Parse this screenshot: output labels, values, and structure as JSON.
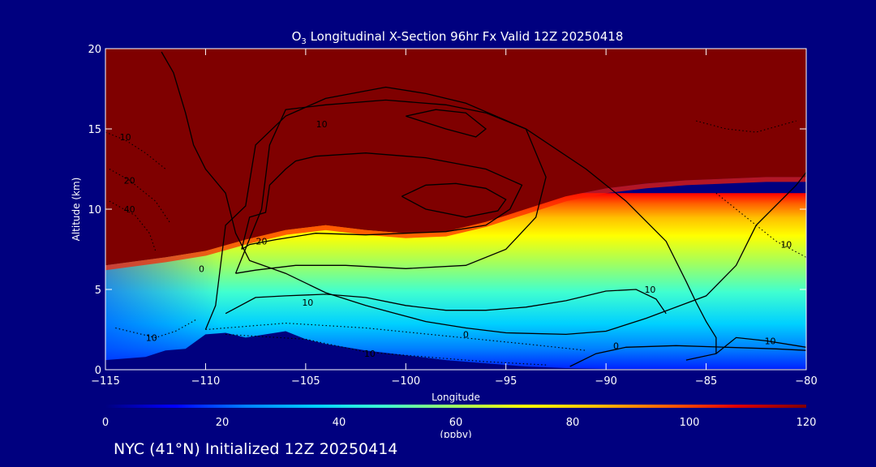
{
  "chart_data": {
    "type": "heatmap",
    "title_prefix": "O",
    "title_sub": "3",
    "title_rest": " Longitudinal X-Section 96hr  Fx Valid 12Z 20250418",
    "xlabel": "Longitude",
    "ylabel": "Altitude (km)",
    "xlim": [
      -115,
      -80
    ],
    "ylim": [
      0,
      20
    ],
    "x_ticks": [
      -115,
      -110,
      -105,
      -100,
      -95,
      -90,
      -85,
      -80
    ],
    "x_tick_labels": [
      "−115",
      "−110",
      "−105",
      "−100",
      "−95",
      "−90",
      "−85",
      "−80"
    ],
    "y_ticks": [
      0,
      5,
      10,
      15,
      20
    ],
    "y_tick_labels": [
      "0",
      "5",
      "10",
      "15",
      "20"
    ],
    "colorbar": {
      "min": 0,
      "max": 120,
      "ticks": [
        0,
        20,
        40,
        60,
        80,
        100,
        120
      ],
      "tick_labels": [
        "0",
        "20",
        "40",
        "60",
        "80",
        "100",
        "120"
      ],
      "unit": "(ppbv)",
      "colors": [
        "#00007f",
        "#0000ff",
        "#0080ff",
        "#00d0ff",
        "#40ffd0",
        "#a0ff60",
        "#ffff00",
        "#ffc000",
        "#ff6000",
        "#e00000",
        "#7f0000"
      ]
    },
    "stratosphere_boundary": {
      "lon": [
        -115,
        -112,
        -110,
        -108,
        -106,
        -104,
        -102,
        -100,
        -98,
        -96,
        -94,
        -92,
        -90,
        -88,
        -86,
        -84,
        -82,
        -80
      ],
      "alt": [
        6.5,
        7.0,
        7.4,
        8.1,
        8.7,
        9.0,
        8.7,
        8.5,
        8.6,
        9.2,
        10.0,
        10.8,
        11.3,
        11.6,
        11.8,
        11.9,
        12.0,
        12.0
      ]
    },
    "terrain": {
      "lon": [
        -115,
        -113,
        -112,
        -111,
        -110,
        -109,
        -108,
        -107,
        -106,
        -105,
        -104,
        -102,
        -100,
        -98,
        -96,
        -94,
        -92,
        -90,
        -88,
        -85,
        -82,
        -80
      ],
      "alt": [
        0.6,
        0.8,
        1.2,
        1.3,
        2.2,
        2.3,
        2.0,
        2.2,
        2.4,
        1.9,
        1.6,
        1.2,
        0.9,
        0.6,
        0.4,
        0.2,
        0.1,
        0.05,
        0.05,
        0.05,
        0.05,
        0.05
      ]
    },
    "contours": [
      {
        "label": "0",
        "style": "solid",
        "label_pos": [
          -110.2,
          6.3
        ],
        "lon": [
          -112.2,
          -111.6,
          -111.0,
          -110.6,
          -110.0,
          -109.0,
          -108.5,
          -107.8,
          -106.0,
          -104.0,
          -102.0,
          -100.5,
          -99.0,
          -97.0,
          -95.0,
          -92.0,
          -90.0,
          -88.0,
          -85.0,
          -83.5,
          -82.5,
          -80.5,
          -80.0
        ],
        "alt": [
          19.8,
          18.5,
          16.0,
          14.0,
          12.5,
          11.0,
          8.5,
          6.8,
          6.0,
          4.8,
          4.0,
          3.5,
          3.0,
          2.6,
          2.3,
          2.2,
          2.4,
          3.2,
          4.6,
          6.5,
          9.0,
          11.5,
          12.3
        ]
      },
      {
        "label": "10",
        "style": "solid",
        "label_pos": [
          -104.9,
          4.2
        ],
        "lon": [
          -110.0,
          -109.5,
          -109.3,
          -109.0,
          -108.0,
          -107.5,
          -106.0,
          -104.0,
          -101.0,
          -99.0,
          -97.0,
          -94.0,
          -91.0,
          -89.0,
          -87.0,
          -86.0,
          -85.5,
          -85.0,
          -84.5,
          -84.5
        ],
        "alt": [
          2.5,
          4.0,
          6.0,
          9.0,
          10.2,
          14.0,
          15.8,
          16.9,
          17.6,
          17.2,
          16.6,
          15.0,
          12.5,
          10.5,
          8.0,
          5.5,
          4.2,
          3.0,
          2.0,
          1.0
        ]
      },
      {
        "label": "10",
        "style": "solid",
        "label_pos": [
          -87.8,
          5.0
        ],
        "lon": [
          -109.0,
          -107.5,
          -106.0,
          -104.0,
          -102.0,
          -100.0,
          -98.0,
          -96.0,
          -94.0,
          -92.0,
          -90.0,
          -88.5,
          -87.5,
          -87.0
        ],
        "alt": [
          3.5,
          4.5,
          4.6,
          4.7,
          4.5,
          4.0,
          3.7,
          3.7,
          3.9,
          4.3,
          4.9,
          5.0,
          4.4,
          3.5
        ]
      },
      {
        "label": "10",
        "style": "solid",
        "label_pos": [
          -104.2,
          15.3
        ],
        "lon": [
          -108.5,
          -107.2,
          -106.8,
          -106.0,
          -104.0,
          -101.0,
          -98.0,
          -96.0,
          -94.0,
          -93.0,
          -93.5,
          -95.0,
          -97.0,
          -100.0,
          -103.0,
          -105.5,
          -107.5,
          -108.5
        ],
        "alt": [
          6.0,
          10.0,
          14.0,
          16.2,
          16.5,
          16.8,
          16.5,
          16.0,
          15.0,
          12.0,
          9.5,
          7.5,
          6.5,
          6.3,
          6.5,
          6.5,
          6.2,
          6.0
        ]
      },
      {
        "label": "20",
        "style": "solid",
        "label_pos": [
          -107.2,
          8.0
        ],
        "lon": [
          -108.2,
          -107.8,
          -107.0,
          -106.8,
          -106.0,
          -105.5,
          -104.5,
          -102.0,
          -99.0,
          -96.0,
          -94.2,
          -94.8,
          -96.0,
          -98.0,
          -100.0,
          -102.0,
          -104.5,
          -106.5,
          -107.8,
          -108.2
        ],
        "alt": [
          7.5,
          9.5,
          9.8,
          11.5,
          12.5,
          13.0,
          13.3,
          13.5,
          13.2,
          12.5,
          11.5,
          10.0,
          9.0,
          8.6,
          8.5,
          8.4,
          8.5,
          8.1,
          7.8,
          7.5
        ]
      },
      {
        "label": "",
        "style": "solid",
        "label_pos": [
          -98,
          11
        ],
        "lon": [
          -100.2,
          -99.0,
          -97.5,
          -96.0,
          -95.0,
          -95.4,
          -97.0,
          -99.0,
          -100.2
        ],
        "alt": [
          10.8,
          11.5,
          11.6,
          11.3,
          10.6,
          9.9,
          9.5,
          10.0,
          10.8
        ]
      },
      {
        "label": "",
        "style": "solid",
        "label_pos": [
          -97,
          16
        ],
        "lon": [
          -100.0,
          -98.5,
          -97.0,
          -96.0,
          -96.5,
          -98.0,
          -100.0
        ],
        "alt": [
          15.8,
          16.2,
          16.0,
          15.0,
          14.5,
          15.0,
          15.8
        ]
      },
      {
        "label": "0",
        "style": "solid",
        "label_pos": [
          -89.5,
          1.5
        ],
        "lon": [
          -91.8,
          -90.5,
          -89.0,
          -86.5,
          -84.0,
          -81.5,
          -80.0
        ],
        "alt": [
          0.2,
          1.0,
          1.4,
          1.5,
          1.4,
          1.3,
          1.2
        ]
      },
      {
        "label": "10",
        "style": "solid",
        "label_pos": [
          -81.8,
          1.8
        ],
        "lon": [
          -86.0,
          -84.5,
          -83.5,
          -82.0,
          -80.5,
          -80.0
        ],
        "alt": [
          0.6,
          1.0,
          2.0,
          1.8,
          1.5,
          1.4
        ]
      },
      {
        "label": "0",
        "style": "dotted",
        "label_pos": [
          -97.0,
          2.2
        ],
        "lon": [
          -110.0,
          -106.0,
          -102.0,
          -98.0,
          -94.0,
          -91.0
        ],
        "alt": [
          2.5,
          2.9,
          2.6,
          2.1,
          1.6,
          1.2
        ]
      },
      {
        "label": "10",
        "style": "dotted",
        "label_pos": [
          -101.8,
          1.0
        ],
        "lon": [
          -109.0,
          -105.0,
          -102.0,
          -99.0,
          -96.0,
          -93.0
        ],
        "alt": [
          2.2,
          1.9,
          1.1,
          0.8,
          0.5,
          0.3
        ]
      },
      {
        "label": "10",
        "style": "dotted",
        "label_pos": [
          -112.7,
          2.0
        ],
        "lon": [
          -114.5,
          -113.5,
          -112.5,
          -111.5,
          -110.5
        ],
        "alt": [
          2.6,
          2.3,
          2.0,
          2.4,
          3.1
        ]
      },
      {
        "label": "10",
        "style": "dotted",
        "label_pos": [
          -114.0,
          14.5
        ],
        "lon": [
          -115.0,
          -114.0,
          -113.0,
          -112.0
        ],
        "alt": [
          14.8,
          14.3,
          13.5,
          12.5
        ]
      },
      {
        "label": "20",
        "style": "dotted",
        "label_pos": [
          -113.8,
          11.8
        ],
        "lon": [
          -114.8,
          -113.8,
          -112.5,
          -111.8
        ],
        "alt": [
          12.5,
          11.8,
          10.5,
          9.2
        ]
      },
      {
        "label": "40",
        "style": "dotted",
        "label_pos": [
          -113.8,
          10.0
        ],
        "lon": [
          -114.8,
          -113.5,
          -112.8,
          -112.5
        ],
        "alt": [
          10.5,
          9.6,
          8.5,
          7.4
        ]
      },
      {
        "label": "10",
        "style": "dotted",
        "label_pos": [
          -81.0,
          7.8
        ],
        "lon": [
          -84.5,
          -83.0,
          -81.5,
          -80.0
        ],
        "alt": [
          11.0,
          9.5,
          8.0,
          7.0
        ]
      },
      {
        "label": "",
        "style": "dotted",
        "label_pos": [
          -82,
          15
        ],
        "lon": [
          -85.5,
          -84.0,
          -82.5,
          -80.5
        ],
        "alt": [
          15.5,
          15.0,
          14.8,
          15.5
        ]
      }
    ]
  },
  "footer": "NYC (41°N) Initialized 12Z 20250414"
}
